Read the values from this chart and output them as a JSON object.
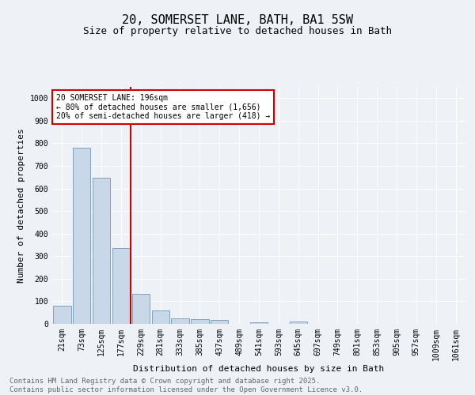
{
  "title1": "20, SOMERSET LANE, BATH, BA1 5SW",
  "title2": "Size of property relative to detached houses in Bath",
  "xlabel": "Distribution of detached houses by size in Bath",
  "ylabel": "Number of detached properties",
  "bin_labels": [
    "21sqm",
    "73sqm",
    "125sqm",
    "177sqm",
    "229sqm",
    "281sqm",
    "333sqm",
    "385sqm",
    "437sqm",
    "489sqm",
    "541sqm",
    "593sqm",
    "645sqm",
    "697sqm",
    "749sqm",
    "801sqm",
    "853sqm",
    "905sqm",
    "957sqm",
    "1009sqm",
    "1061sqm"
  ],
  "bar_values": [
    82,
    782,
    648,
    335,
    133,
    60,
    23,
    22,
    17,
    0,
    6,
    0,
    9,
    0,
    0,
    0,
    0,
    0,
    0,
    0,
    0
  ],
  "bar_color": "#c8d8e8",
  "bar_edge_color": "#7098b8",
  "vline_x": 3.5,
  "vline_color": "#cc0000",
  "annotation_text": "20 SOMERSET LANE: 196sqm\n← 80% of detached houses are smaller (1,656)\n20% of semi-detached houses are larger (418) →",
  "annotation_box_facecolor": "#ffffff",
  "annotation_box_edgecolor": "#cc0000",
  "ylim": [
    0,
    1050
  ],
  "yticks": [
    0,
    100,
    200,
    300,
    400,
    500,
    600,
    700,
    800,
    900,
    1000
  ],
  "footnote": "Contains HM Land Registry data © Crown copyright and database right 2025.\nContains public sector information licensed under the Open Government Licence v3.0.",
  "bg_color": "#eef2f7",
  "grid_color": "#ffffff",
  "title1_fontsize": 11,
  "title2_fontsize": 9,
  "axis_label_fontsize": 8,
  "tick_fontsize": 7,
  "annot_fontsize": 7,
  "footnote_fontsize": 6.5,
  "footnote_color": "#666666"
}
